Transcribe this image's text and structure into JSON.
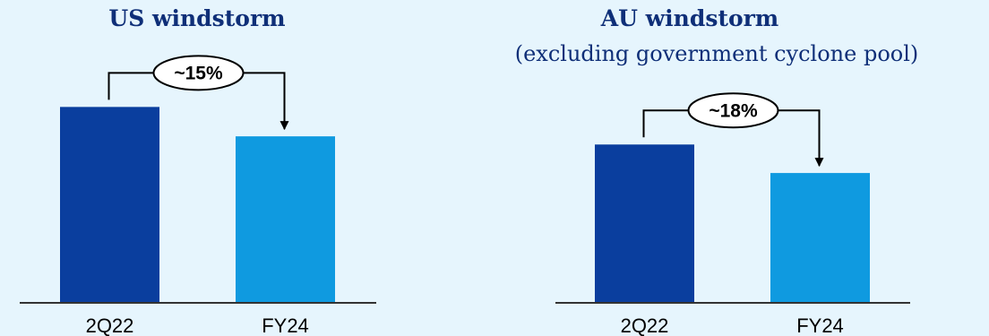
{
  "colors": {
    "background": "#e6f5fd",
    "bar_dark": "#0a3e9e",
    "bar_light": "#0f9ae0",
    "title": "#0f2f78"
  },
  "chart_data": [
    {
      "type": "bar",
      "title": "US windstorm",
      "subtitle": "",
      "categories": [
        "2Q22",
        "FY24"
      ],
      "values": [
        100,
        85
      ],
      "ylim": [
        0,
        118
      ],
      "annotation": "~15%",
      "grid": false,
      "legend": "none"
    },
    {
      "type": "bar",
      "title": "AU windstorm",
      "subtitle": "(excluding government cyclone pool)",
      "categories": [
        "2Q22",
        "FY24"
      ],
      "values": [
        100,
        82
      ],
      "ylim": [
        0,
        146
      ],
      "annotation": "~18%",
      "grid": false,
      "legend": "none"
    }
  ]
}
